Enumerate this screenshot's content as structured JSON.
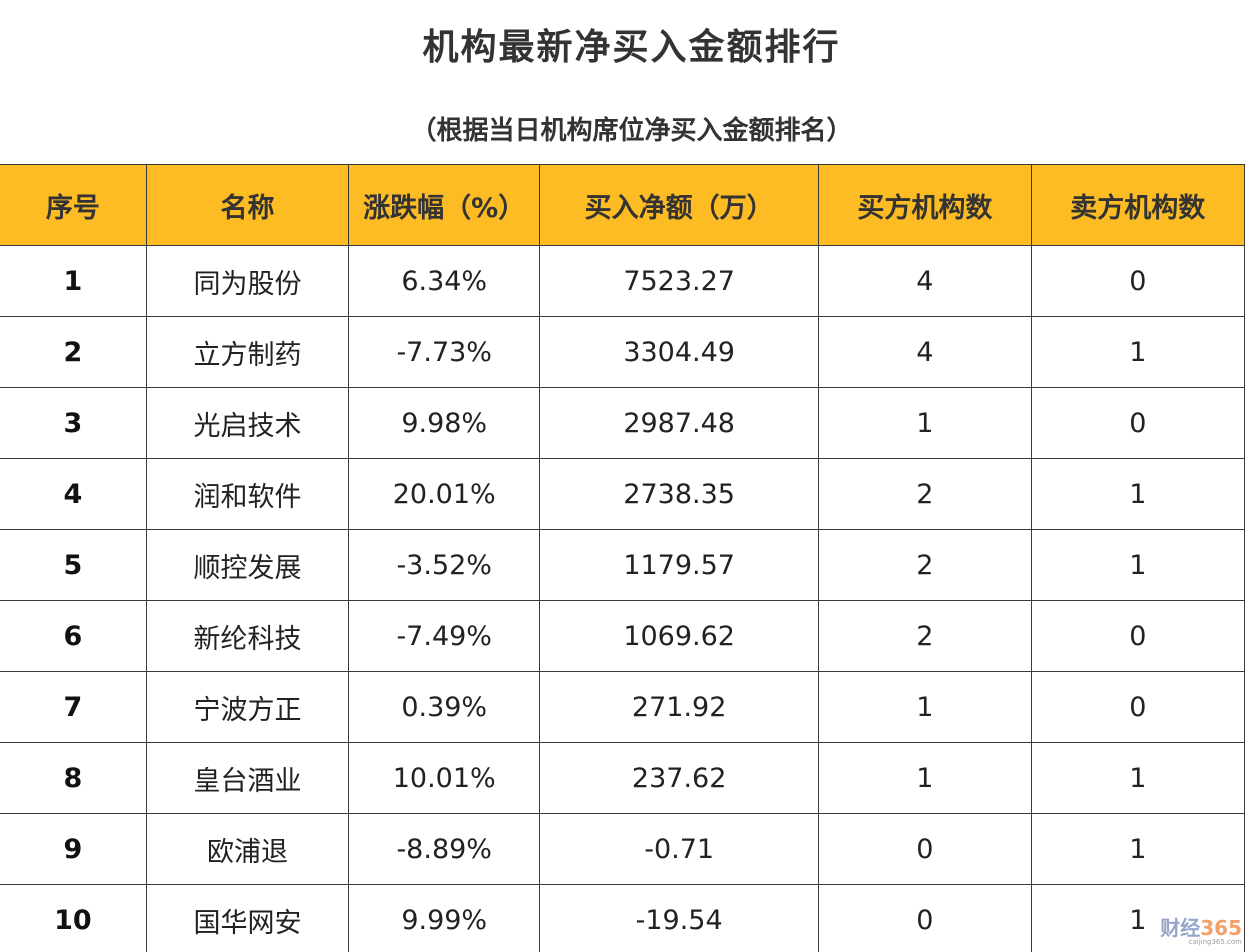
{
  "chart_data": {
    "type": "table",
    "title": "机构最新净买入金额排行",
    "subtitle": "（根据当日机构席位净买入金额排名）",
    "columns": [
      "序号",
      "名称",
      "涨跌幅（%）",
      "买入净额（万）",
      "买方机构数",
      "卖方机构数"
    ],
    "rows": [
      {
        "rank": "1",
        "name": "同为股份",
        "change": "6.34%",
        "net_buy": "7523.27",
        "buyers": "4",
        "sellers": "0"
      },
      {
        "rank": "2",
        "name": "立方制药",
        "change": "-7.73%",
        "net_buy": "3304.49",
        "buyers": "4",
        "sellers": "1"
      },
      {
        "rank": "3",
        "name": "光启技术",
        "change": "9.98%",
        "net_buy": "2987.48",
        "buyers": "1",
        "sellers": "0"
      },
      {
        "rank": "4",
        "name": "润和软件",
        "change": "20.01%",
        "net_buy": "2738.35",
        "buyers": "2",
        "sellers": "1"
      },
      {
        "rank": "5",
        "name": "顺控发展",
        "change": "-3.52%",
        "net_buy": "1179.57",
        "buyers": "2",
        "sellers": "1"
      },
      {
        "rank": "6",
        "name": "新纶科技",
        "change": "-7.49%",
        "net_buy": "1069.62",
        "buyers": "2",
        "sellers": "0"
      },
      {
        "rank": "7",
        "name": "宁波方正",
        "change": "0.39%",
        "net_buy": "271.92",
        "buyers": "1",
        "sellers": "0"
      },
      {
        "rank": "8",
        "name": "皇台酒业",
        "change": "10.01%",
        "net_buy": "237.62",
        "buyers": "1",
        "sellers": "1"
      },
      {
        "rank": "9",
        "name": "欧浦退",
        "change": "-8.89%",
        "net_buy": "-0.71",
        "buyers": "0",
        "sellers": "1"
      },
      {
        "rank": "10",
        "name": "国华网安",
        "change": "9.99%",
        "net_buy": "-19.54",
        "buyers": "0",
        "sellers": "1"
      }
    ],
    "header_color": "#fdbb24",
    "border_color": "#3a3a3a"
  },
  "watermark": {
    "brand": "财经",
    "number": "365",
    "url": "caijing365.com"
  }
}
